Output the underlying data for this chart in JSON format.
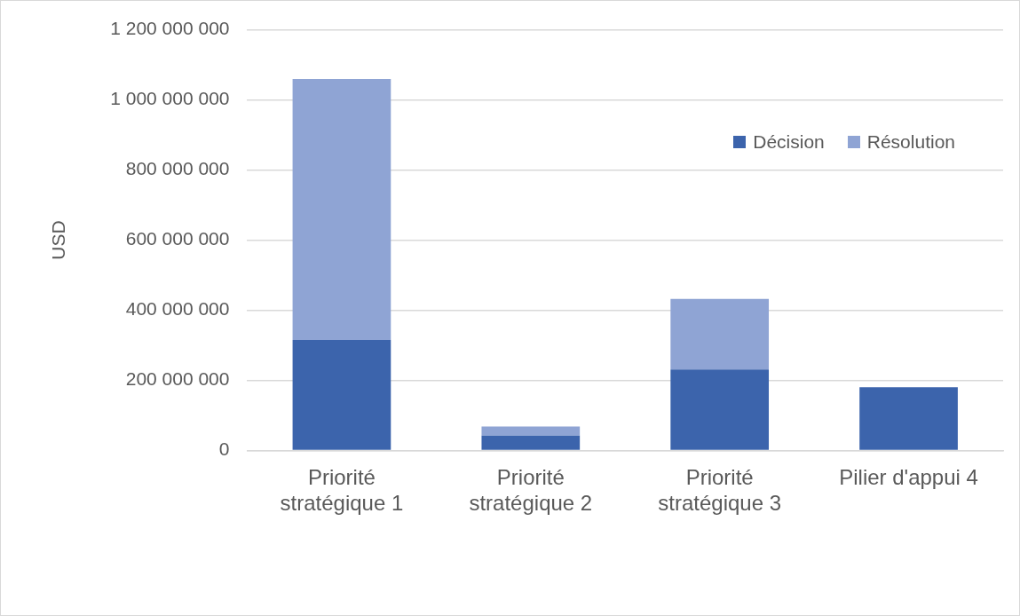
{
  "chart_data": {
    "type": "bar",
    "stacked": true,
    "ylabel": "USD",
    "categories": [
      "Priorité stratégique 1",
      "Priorité stratégique 2",
      "Priorité stratégique 3",
      "Pilier d'appui 4"
    ],
    "series": [
      {
        "name": "Décision",
        "color": "#3c64ac",
        "values": [
          315000000,
          42000000,
          231000000,
          180000000
        ]
      },
      {
        "name": "Résolution",
        "color": "#8fa4d4",
        "values": [
          745000000,
          26000000,
          201000000,
          null
        ]
      }
    ],
    "ylim": [
      0,
      1200000000
    ],
    "yticks": [
      0,
      200000000,
      400000000,
      600000000,
      800000000,
      1000000000,
      1200000000
    ],
    "grid": "y",
    "legend": "top right"
  }
}
